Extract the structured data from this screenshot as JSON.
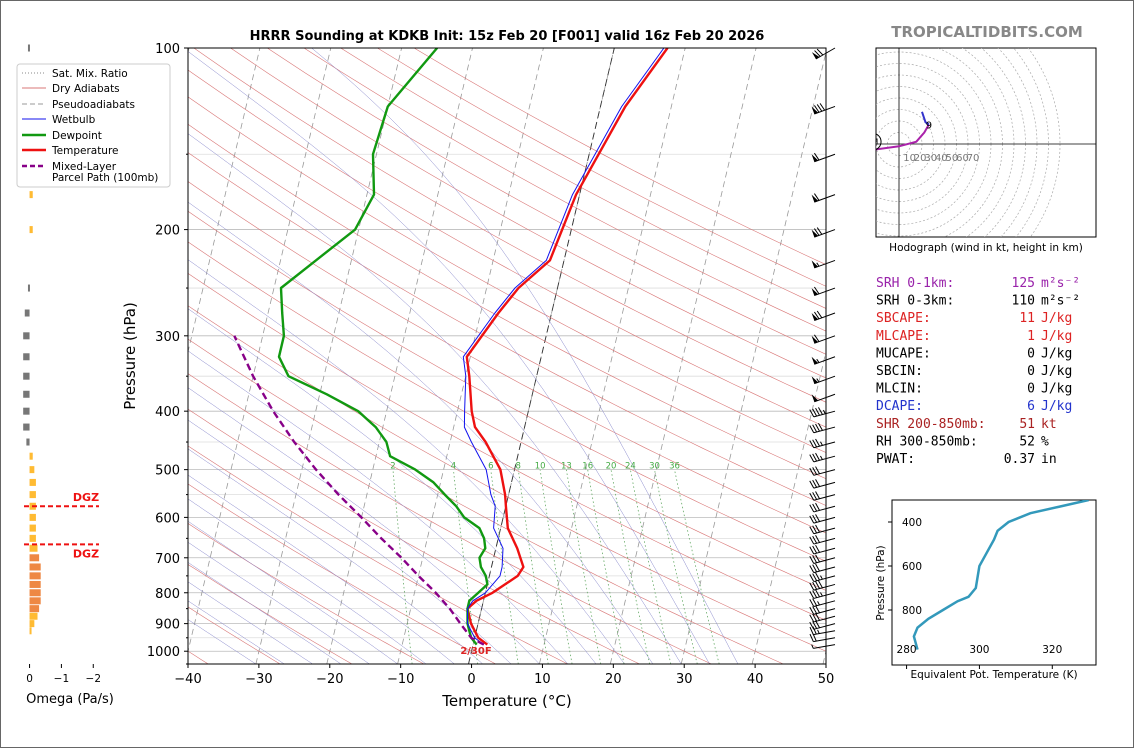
{
  "brand": "TROPICALTIDBITS.COM",
  "chart_data": {
    "type": "line",
    "title": "HRRR Sounding at KDKB Init: 15z Feb 20 [F001] valid 16z Feb 20 2026",
    "xlabel": "Temperature (°C)",
    "ylabel": "Pressure (hPa)",
    "xlim": [
      -40,
      50
    ],
    "ylim": [
      1050,
      100
    ],
    "y_scale": "log",
    "x_ticks": [
      "−40",
      "−30",
      "−20",
      "−10",
      "0",
      "10",
      "20",
      "30",
      "40",
      "50"
    ],
    "y_ticks": [
      "100",
      "200",
      "300",
      "400",
      "500",
      "600",
      "700",
      "800",
      "900",
      "1000"
    ],
    "legend": {
      "placement": "top-left",
      "entries": [
        "Sat. Mix. Ratio",
        "Dry Adiabats",
        "Pseudoadiabats",
        "Wetbulb",
        "Dewpoint",
        "Temperature",
        "Mixed-Layer",
        "Parcel Path (100mb)"
      ]
    },
    "mixing_ratio_labels": [
      "2",
      "4",
      "6",
      "8",
      "10",
      "13",
      "16",
      "20",
      "24",
      "30",
      "36"
    ],
    "surface_label": "2/30F",
    "series": [
      {
        "name": "Temperature",
        "color": "#ee1111",
        "points": [
          [
            7.5,
            100
          ],
          [
            3.5,
            125
          ],
          [
            -0.5,
            175
          ],
          [
            -2,
            225
          ],
          [
            -5.5,
            250
          ],
          [
            -7.5,
            275
          ],
          [
            -10.5,
            325
          ],
          [
            -9.5,
            350
          ],
          [
            -8,
            400
          ],
          [
            -7,
            425
          ],
          [
            -5,
            450
          ],
          [
            -2,
            500
          ],
          [
            -0.5,
            550
          ],
          [
            0,
            575
          ],
          [
            1,
            625
          ],
          [
            3,
            675
          ],
          [
            4.5,
            725
          ],
          [
            4,
            750
          ],
          [
            1,
            800
          ],
          [
            -1,
            825
          ],
          [
            -2,
            850
          ],
          [
            -1,
            900
          ],
          [
            0.5,
            950
          ],
          [
            2,
            975
          ]
        ]
      },
      {
        "name": "Dewpoint",
        "color": "#119911",
        "points": [
          [
            -25,
            100
          ],
          [
            -30,
            125
          ],
          [
            -30.5,
            150
          ],
          [
            -29,
            175
          ],
          [
            -30.5,
            200
          ],
          [
            -35,
            225
          ],
          [
            -39,
            250
          ],
          [
            -38,
            275
          ],
          [
            -37,
            300
          ],
          [
            -37,
            325
          ],
          [
            -35,
            350
          ],
          [
            -29,
            375
          ],
          [
            -24,
            400
          ],
          [
            -21,
            425
          ],
          [
            -19,
            450
          ],
          [
            -18,
            475
          ],
          [
            -14,
            500
          ],
          [
            -11,
            525
          ],
          [
            -9,
            550
          ],
          [
            -7,
            575
          ],
          [
            -5.5,
            600
          ],
          [
            -3,
            625
          ],
          [
            -2,
            650
          ],
          [
            -1.5,
            675
          ],
          [
            -2,
            700
          ],
          [
            -1.5,
            725
          ],
          [
            -0.5,
            750
          ],
          [
            0,
            775
          ],
          [
            -1,
            800
          ],
          [
            -2,
            825
          ],
          [
            -2,
            850
          ],
          [
            -1.5,
            900
          ],
          [
            -1,
            925
          ],
          [
            -0.5,
            950
          ],
          [
            0.5,
            975
          ]
        ]
      },
      {
        "name": "Wetbulb",
        "color": "#1111ee",
        "points": [
          [
            7,
            100
          ],
          [
            3,
            125
          ],
          [
            -1,
            175
          ],
          [
            -2.5,
            225
          ],
          [
            -6,
            250
          ],
          [
            -8,
            275
          ],
          [
            -11,
            325
          ],
          [
            -10,
            350
          ],
          [
            -9,
            400
          ],
          [
            -8.5,
            425
          ],
          [
            -7,
            450
          ],
          [
            -4,
            500
          ],
          [
            -2.5,
            550
          ],
          [
            -1.5,
            575
          ],
          [
            -1,
            625
          ],
          [
            1,
            675
          ],
          [
            1.5,
            725
          ],
          [
            1.5,
            750
          ],
          [
            0,
            800
          ],
          [
            -1.5,
            825
          ],
          [
            -2,
            850
          ],
          [
            -1.5,
            900
          ],
          [
            0,
            950
          ],
          [
            1.5,
            975
          ]
        ]
      },
      {
        "name": "Mixed-Layer Parcel Path (100mb)",
        "color": "#880088",
        "points": [
          [
            1.5,
            975
          ],
          [
            -0.5,
            950
          ],
          [
            -2.5,
            900
          ],
          [
            -4.5,
            850
          ],
          [
            -7,
            800
          ],
          [
            -10,
            750
          ],
          [
            -13,
            700
          ],
          [
            -16.5,
            650
          ],
          [
            -20,
            600
          ],
          [
            -24,
            550
          ],
          [
            -28,
            500
          ],
          [
            -32,
            450
          ],
          [
            -36,
            400
          ],
          [
            -40,
            350
          ],
          [
            -44,
            300
          ]
        ]
      }
    ],
    "wind_barbs": [
      {
        "p": 100,
        "dir": 240,
        "spd": 70
      },
      {
        "p": 125,
        "dir": 250,
        "spd": 80
      },
      {
        "p": 150,
        "dir": 250,
        "spd": 60
      },
      {
        "p": 175,
        "dir": 250,
        "spd": 60
      },
      {
        "p": 200,
        "dir": 250,
        "spd": 70
      },
      {
        "p": 225,
        "dir": 250,
        "spd": 55
      },
      {
        "p": 250,
        "dir": 250,
        "spd": 60
      },
      {
        "p": 275,
        "dir": 250,
        "spd": 70
      },
      {
        "p": 300,
        "dir": 250,
        "spd": 60
      },
      {
        "p": 325,
        "dir": 250,
        "spd": 55
      },
      {
        "p": 350,
        "dir": 250,
        "spd": 55
      },
      {
        "p": 375,
        "dir": 250,
        "spd": 50
      },
      {
        "p": 400,
        "dir": 255,
        "spd": 45
      },
      {
        "p": 425,
        "dir": 255,
        "spd": 40
      },
      {
        "p": 450,
        "dir": 255,
        "spd": 35
      },
      {
        "p": 475,
        "dir": 255,
        "spd": 35
      },
      {
        "p": 500,
        "dir": 255,
        "spd": 30
      },
      {
        "p": 525,
        "dir": 255,
        "spd": 30
      },
      {
        "p": 550,
        "dir": 255,
        "spd": 30
      },
      {
        "p": 575,
        "dir": 255,
        "spd": 30
      },
      {
        "p": 600,
        "dir": 255,
        "spd": 30
      },
      {
        "p": 625,
        "dir": 255,
        "spd": 30
      },
      {
        "p": 650,
        "dir": 255,
        "spd": 30
      },
      {
        "p": 675,
        "dir": 255,
        "spd": 30
      },
      {
        "p": 700,
        "dir": 255,
        "spd": 30
      },
      {
        "p": 725,
        "dir": 255,
        "spd": 30
      },
      {
        "p": 750,
        "dir": 255,
        "spd": 35
      },
      {
        "p": 775,
        "dir": 255,
        "spd": 40
      },
      {
        "p": 800,
        "dir": 255,
        "spd": 35
      },
      {
        "p": 825,
        "dir": 255,
        "spd": 25
      },
      {
        "p": 850,
        "dir": 255,
        "spd": 30
      },
      {
        "p": 875,
        "dir": 255,
        "spd": 30
      },
      {
        "p": 900,
        "dir": 255,
        "spd": 30
      },
      {
        "p": 925,
        "dir": 260,
        "spd": 25
      },
      {
        "p": 950,
        "dir": 260,
        "spd": 20
      },
      {
        "p": 975,
        "dir": 260,
        "spd": 5
      }
    ],
    "omega": {
      "xlabel": "Omega (Pa/s)",
      "x_ticks": [
        "0",
        "−1",
        "−2"
      ],
      "xlim": [
        0.3,
        -2.4
      ],
      "dgz_label": "DGZ",
      "dgz_levels": [
        575,
        665
      ],
      "levels": [
        {
          "p": 100,
          "v": 0.05
        },
        {
          "p": 175,
          "v": -0.1
        },
        {
          "p": 200,
          "v": -0.1
        },
        {
          "p": 250,
          "v": 0.05
        },
        {
          "p": 275,
          "v": 0.15
        },
        {
          "p": 300,
          "v": 0.2
        },
        {
          "p": 325,
          "v": 0.2
        },
        {
          "p": 350,
          "v": 0.2
        },
        {
          "p": 375,
          "v": 0.2
        },
        {
          "p": 400,
          "v": 0.2
        },
        {
          "p": 425,
          "v": 0.2
        },
        {
          "p": 450,
          "v": 0.1
        },
        {
          "p": 475,
          "v": -0.1
        },
        {
          "p": 500,
          "v": -0.15
        },
        {
          "p": 525,
          "v": -0.2
        },
        {
          "p": 550,
          "v": -0.2
        },
        {
          "p": 575,
          "v": -0.2
        },
        {
          "p": 600,
          "v": -0.2
        },
        {
          "p": 625,
          "v": -0.2
        },
        {
          "p": 650,
          "v": -0.2
        },
        {
          "p": 675,
          "v": -0.25
        },
        {
          "p": 700,
          "v": -0.3
        },
        {
          "p": 725,
          "v": -0.35
        },
        {
          "p": 750,
          "v": -0.35
        },
        {
          "p": 775,
          "v": -0.35
        },
        {
          "p": 800,
          "v": -0.35
        },
        {
          "p": 825,
          "v": -0.35
        },
        {
          "p": 850,
          "v": -0.3
        },
        {
          "p": 875,
          "v": -0.25
        },
        {
          "p": 900,
          "v": -0.15
        },
        {
          "p": 925,
          "v": -0.05
        }
      ]
    },
    "hodograph": {
      "caption": "Hodograph (wind in kt, height in km)",
      "ring_labels": [
        "10",
        "20",
        "30",
        "40",
        "50",
        "60",
        "70"
      ],
      "storm_labels": [
        "LM",
        "RM"
      ],
      "red": {
        "color": "#ee1111",
        "points": [
          [
            -34,
            2
          ],
          [
            -23,
            -5
          ],
          [
            -26,
            -12
          ],
          [
            -30,
            -10
          ]
        ]
      },
      "green": {
        "color": "#119911",
        "points": [
          [
            -23,
            -5
          ],
          [
            -26,
            -12
          ],
          [
            -29,
            -8
          ],
          [
            -25,
            -5
          ]
        ]
      },
      "purple": {
        "color": "#aa22aa",
        "points": [
          [
            -23,
            -5
          ],
          [
            -15,
            -4
          ],
          [
            0,
            -2
          ],
          [
            15,
            2
          ],
          [
            22,
            10
          ],
          [
            26,
            17
          ]
        ]
      },
      "blue": {
        "color": "#3333cc",
        "points": [
          [
            26,
            17
          ],
          [
            23,
            19
          ],
          [
            22,
            22
          ],
          [
            20,
            28
          ]
        ]
      },
      "height_labels": [
        {
          "t": "1",
          "x": -22,
          "y": -9
        },
        {
          "t": "2",
          "x": -30,
          "y": -11
        },
        {
          "t": "3",
          "x": -31,
          "y": -7
        },
        {
          "t": "6",
          "x": -26,
          "y": -3
        },
        {
          "t": "9",
          "x": 26,
          "y": 16
        }
      ],
      "lm": [
        -23,
        2
      ],
      "rm": [
        -30,
        -25
      ]
    },
    "theta_e": {
      "xlabel": "Equivalent Pot. Temperature (K)",
      "ylabel": "Pressure (hPa)",
      "x_ticks": [
        "280",
        "300",
        "320"
      ],
      "y_ticks": [
        "400",
        "600",
        "800"
      ],
      "xlim": [
        276,
        332
      ],
      "ylim": [
        1050,
        300
      ],
      "color": "#3399bb",
      "points": [
        [
          330,
          300
        ],
        [
          322,
          330
        ],
        [
          314,
          360
        ],
        [
          308,
          400
        ],
        [
          305,
          440
        ],
        [
          304,
          480
        ],
        [
          302,
          540
        ],
        [
          300,
          600
        ],
        [
          299,
          700
        ],
        [
          297,
          740
        ],
        [
          294,
          760
        ],
        [
          290,
          800
        ],
        [
          286,
          840
        ],
        [
          283,
          880
        ],
        [
          282,
          920
        ],
        [
          283,
          980
        ]
      ]
    }
  },
  "indices": [
    {
      "label": "SRH 0-1km:",
      "value": "125",
      "unit": "m²s⁻²",
      "color": "#9922aa"
    },
    {
      "label": "SRH 0-3km:",
      "value": "110",
      "unit": "m²s⁻²",
      "color": "#000000"
    },
    {
      "label": "SBCAPE:",
      "value": "11",
      "unit": "J/kg",
      "color": "#dd2222"
    },
    {
      "label": "MLCAPE:",
      "value": "1",
      "unit": "J/kg",
      "color": "#dd2222"
    },
    {
      "label": "MUCAPE:",
      "value": "0",
      "unit": "J/kg",
      "color": "#000000"
    },
    {
      "label": "SBCIN:",
      "value": "0",
      "unit": "J/kg",
      "color": "#000000"
    },
    {
      "label": "MLCIN:",
      "value": "0",
      "unit": "J/kg",
      "color": "#000000"
    },
    {
      "label": "DCAPE:",
      "value": "6",
      "unit": "J/kg",
      "color": "#2233cc"
    },
    {
      "label": "SHR 200-850mb:",
      "value": "51",
      "unit": "kt",
      "color": "#aa2222"
    },
    {
      "label": "RH 300-850mb:",
      "value": "52",
      "unit": "%",
      "color": "#000000"
    },
    {
      "label": "PWAT:",
      "value": "0.37",
      "unit": "in",
      "color": "#000000"
    }
  ]
}
